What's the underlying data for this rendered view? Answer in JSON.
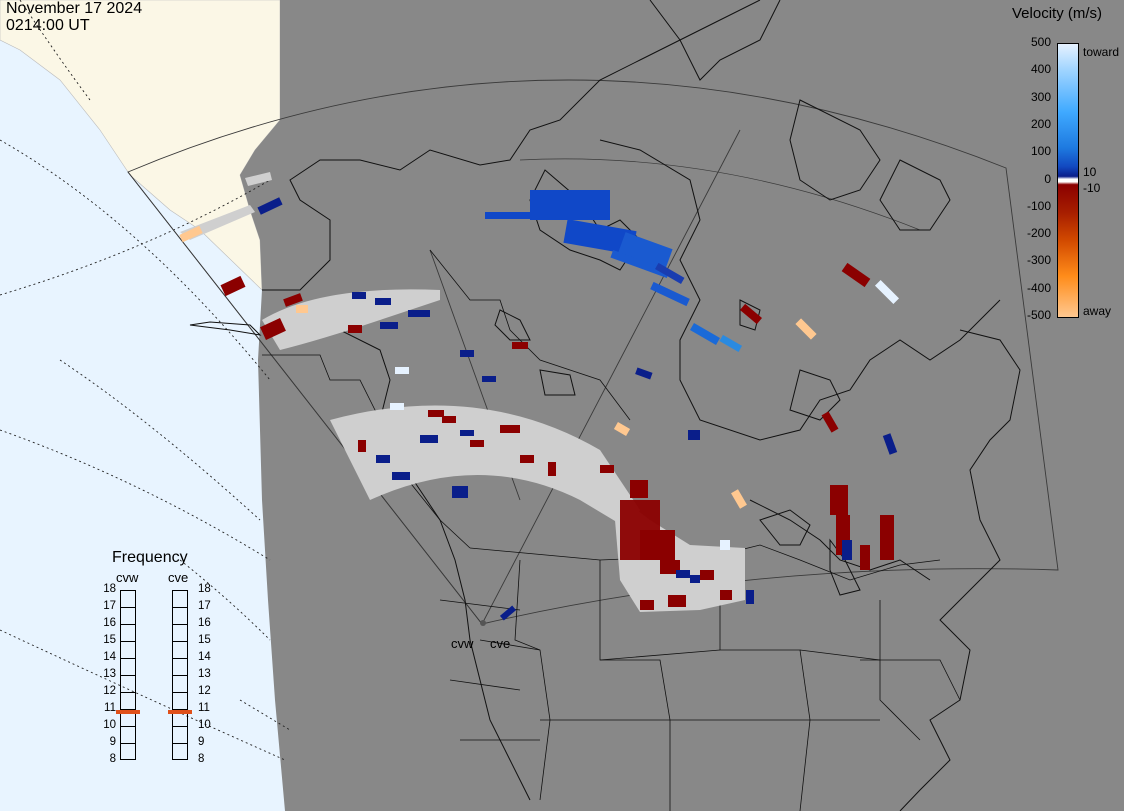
{
  "header": {
    "date": "November 17 2024",
    "time": "0214:00 UT"
  },
  "colorbar": {
    "title": "Velocity (m/s)",
    "ticks": [
      "500",
      "400",
      "300",
      "200",
      "100",
      "0",
      "-100",
      "-200",
      "-300",
      "-400",
      "-500"
    ],
    "small_ticks": [
      "10",
      "-10"
    ],
    "toward_label": "toward",
    "away_label": "away",
    "colors": [
      "#e6f2ff",
      "#9dd3ff",
      "#3fa9ff",
      "#1e7ae0",
      "#1248c0",
      "#0a1e8a",
      "#ffffff",
      "#8b0000",
      "#a81f00",
      "#d24a00",
      "#ff8c1a",
      "#ffc890"
    ]
  },
  "frequency": {
    "title": "Frequency",
    "radars": [
      {
        "name": "cvw",
        "freq_mhz": 10.8
      },
      {
        "name": "cve",
        "freq_mhz": 10.8
      }
    ],
    "scale": [
      "18",
      "17",
      "16",
      "15",
      "14",
      "13",
      "12",
      "11",
      "10",
      "9",
      "8"
    ],
    "marker_color": "#e0501a"
  },
  "sites": {
    "cvw": "cvw",
    "cve": "cve"
  },
  "colors": {
    "land": "#888888",
    "ocean": "#e8f4ff",
    "ground_scatter": "#cfcfcf"
  }
}
